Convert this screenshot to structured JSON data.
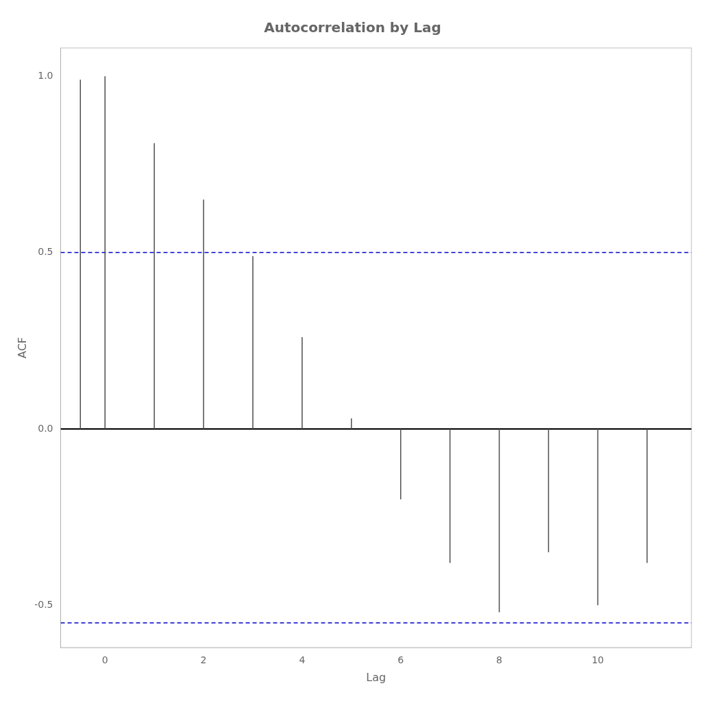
{
  "chart_data": {
    "type": "stem",
    "title": "Autocorrelation by Lag",
    "xlabel": "Lag",
    "ylabel": "ACF",
    "x": [
      0,
      1,
      2,
      3,
      4,
      5,
      6,
      7,
      8,
      9,
      10,
      11,
      -0.5
    ],
    "values": [
      1.0,
      0.81,
      0.65,
      0.49,
      0.26,
      0.03,
      -0.2,
      -0.38,
      -0.52,
      -0.35,
      -0.5,
      -0.38,
      0.99
    ],
    "color": "#4d4d4d",
    "xlim": [
      -0.9,
      11.9
    ],
    "ylim": [
      -0.62,
      1.08
    ],
    "xticks": [
      0,
      2,
      4,
      6,
      8,
      10
    ],
    "yticks": [
      -0.5,
      {
        "value": 0,
        "label": "0.0"
      },
      0.5,
      {
        "value": 1.0,
        "label": "1.0"
      }
    ],
    "grid": false,
    "reference_lines": [
      {
        "y": 0.5,
        "color": "#0000cc",
        "line_style": "dashed"
      },
      {
        "y": -0.55,
        "color": "#0000cc",
        "line_style": "dashed"
      },
      {
        "y": 0,
        "color": "#000000",
        "line_style": "solid"
      }
    ]
  }
}
